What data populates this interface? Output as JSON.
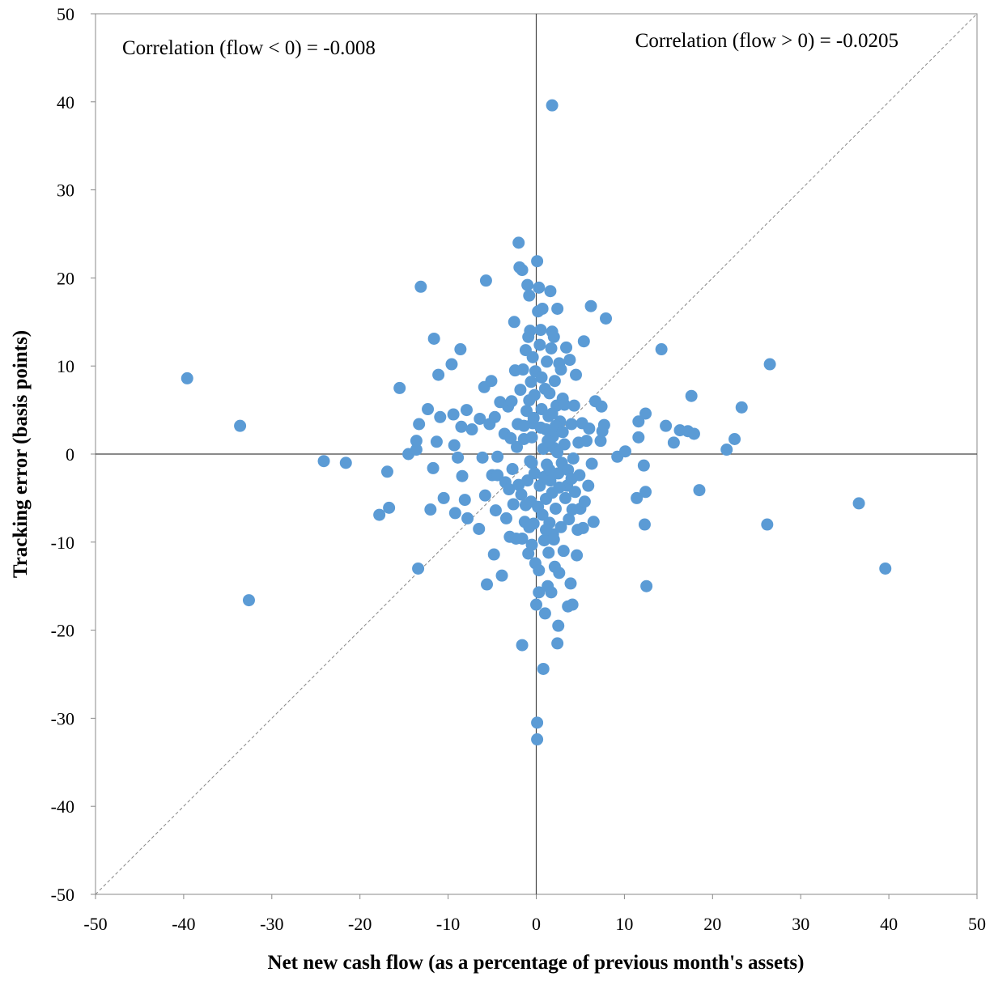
{
  "chart_data": {
    "type": "scatter",
    "xlabel": "Net new cash flow (as a percentage of previous month's assets)",
    "ylabel": "Tracking error (basis points)",
    "xlim": [
      -50,
      50
    ],
    "ylim": [
      -50,
      50
    ],
    "xticks": [
      "-50",
      "-40",
      "-30",
      "-20",
      "-10",
      "0",
      "10",
      "20",
      "30",
      "40",
      "50"
    ],
    "yticks": [
      "50",
      "40",
      "30",
      "20",
      "10",
      "0",
      "-10",
      "-20",
      "-30",
      "-40",
      "-50"
    ],
    "grid": false,
    "reference_line": "y = x (dashed)",
    "annotations": [
      {
        "id": "neg",
        "text": "Correlation (flow < 0) = -0.008",
        "position": "top-left"
      },
      {
        "id": "pos",
        "text": "Correlation (flow > 0) = -0.0205",
        "position": "top-right"
      }
    ],
    "series_color": "#5b9bd5",
    "points": [
      [
        1.8,
        39.6
      ],
      [
        -39.6,
        8.6
      ],
      [
        -33.6,
        3.2
      ],
      [
        -32.6,
        -16.6
      ],
      [
        -24.1,
        -0.8
      ],
      [
        -21.6,
        -1.0
      ],
      [
        -17.8,
        -6.9
      ],
      [
        -16.9,
        -2.0
      ],
      [
        -16.7,
        -6.1
      ],
      [
        -15.5,
        7.5
      ],
      [
        -14.5,
        0.0
      ],
      [
        -13.6,
        0.5
      ],
      [
        -13.6,
        1.5
      ],
      [
        -13.3,
        3.4
      ],
      [
        -13.4,
        -13.0
      ],
      [
        -13.1,
        19.0
      ],
      [
        -12.3,
        5.1
      ],
      [
        -12.0,
        -6.3
      ],
      [
        -11.7,
        -1.6
      ],
      [
        -11.6,
        13.1
      ],
      [
        -11.3,
        1.4
      ],
      [
        -11.1,
        9.0
      ],
      [
        -10.9,
        4.2
      ],
      [
        -10.5,
        -5.0
      ],
      [
        -9.6,
        10.2
      ],
      [
        -9.4,
        4.5
      ],
      [
        -9.3,
        1.0
      ],
      [
        -9.2,
        -6.7
      ],
      [
        -8.9,
        -0.4
      ],
      [
        -8.6,
        11.9
      ],
      [
        -8.5,
        3.1
      ],
      [
        -8.4,
        -2.5
      ],
      [
        -8.1,
        -5.2
      ],
      [
        -7.9,
        5.0
      ],
      [
        -7.8,
        -7.3
      ],
      [
        -7.3,
        2.8
      ],
      [
        -6.5,
        -8.5
      ],
      [
        -6.4,
        4.0
      ],
      [
        -6.1,
        -0.4
      ],
      [
        -5.9,
        7.6
      ],
      [
        -5.7,
        19.7
      ],
      [
        -5.8,
        -4.7
      ],
      [
        -5.6,
        -14.8
      ],
      [
        -5.3,
        3.4
      ],
      [
        -5.1,
        8.3
      ],
      [
        -5.0,
        -2.4
      ],
      [
        -4.8,
        -11.4
      ],
      [
        -4.7,
        4.2
      ],
      [
        -4.6,
        -6.4
      ],
      [
        -4.4,
        -2.4
      ],
      [
        -4.4,
        -0.3
      ],
      [
        -4.1,
        5.9
      ],
      [
        -3.9,
        -13.8
      ],
      [
        -3.6,
        2.3
      ],
      [
        -3.5,
        -3.2
      ],
      [
        -3.4,
        -7.3
      ],
      [
        -3.2,
        5.4
      ],
      [
        -3.1,
        -4.0
      ],
      [
        -3.0,
        -9.4
      ],
      [
        -2.9,
        1.8
      ],
      [
        -2.8,
        6.0
      ],
      [
        -2.7,
        -1.7
      ],
      [
        -2.6,
        -5.7
      ],
      [
        -2.5,
        15.0
      ],
      [
        -2.4,
        9.5
      ],
      [
        -2.3,
        -9.6
      ],
      [
        -2.2,
        0.8
      ],
      [
        -2.1,
        3.4
      ],
      [
        -2.0,
        -3.5
      ],
      [
        -1.9,
        21.2
      ],
      [
        -2.0,
        24.0
      ],
      [
        -1.8,
        7.3
      ],
      [
        -1.7,
        -4.6
      ],
      [
        -1.6,
        20.9
      ],
      [
        -1.6,
        -9.6
      ],
      [
        -1.6,
        -21.7
      ],
      [
        -1.5,
        9.6
      ],
      [
        -1.4,
        1.7
      ],
      [
        -1.3,
        -7.7
      ],
      [
        -1.2,
        11.8
      ],
      [
        -1.1,
        4.9
      ],
      [
        -1.0,
        19.2
      ],
      [
        -1.0,
        -3.0
      ],
      [
        -0.9,
        13.3
      ],
      [
        -0.9,
        -11.3
      ],
      [
        -0.8,
        6.1
      ],
      [
        -0.8,
        18.0
      ],
      [
        -0.7,
        -0.8
      ],
      [
        -0.7,
        14.0
      ],
      [
        -0.6,
        8.2
      ],
      [
        -0.6,
        -5.4
      ],
      [
        -0.5,
        1.9
      ],
      [
        -0.5,
        -10.3
      ],
      [
        -0.4,
        11.0
      ],
      [
        -0.4,
        3.5
      ],
      [
        -0.3,
        -7.9
      ],
      [
        -0.3,
        4.1
      ],
      [
        -0.2,
        -2.2
      ],
      [
        -0.2,
        6.7
      ],
      [
        -0.1,
        -12.4
      ],
      [
        -0.1,
        9.4
      ],
      [
        0.0,
        -17.1
      ],
      [
        0.1,
        21.9
      ],
      [
        0.1,
        -30.5
      ],
      [
        0.1,
        -32.4
      ],
      [
        0.2,
        16.2
      ],
      [
        0.3,
        18.9
      ],
      [
        0.3,
        -15.7
      ],
      [
        0.3,
        -13.2
      ],
      [
        0.4,
        12.4
      ],
      [
        0.4,
        -3.6
      ],
      [
        0.5,
        14.1
      ],
      [
        0.6,
        5.1
      ],
      [
        0.7,
        16.5
      ],
      [
        0.7,
        -6.9
      ],
      [
        0.8,
        0.6
      ],
      [
        0.8,
        -24.4
      ],
      [
        0.9,
        -9.8
      ],
      [
        1.0,
        -18.1
      ],
      [
        1.0,
        7.4
      ],
      [
        1.1,
        2.8
      ],
      [
        1.1,
        -5.1
      ],
      [
        1.2,
        10.5
      ],
      [
        1.2,
        -1.2
      ],
      [
        1.3,
        -15.0
      ],
      [
        1.4,
        4.3
      ],
      [
        1.4,
        -11.2
      ],
      [
        1.5,
        6.9
      ],
      [
        1.5,
        -7.8
      ],
      [
        1.6,
        18.5
      ],
      [
        1.6,
        -3.0
      ],
      [
        1.7,
        12.0
      ],
      [
        1.7,
        -15.7
      ],
      [
        1.8,
        13.9
      ],
      [
        1.8,
        -4.4
      ],
      [
        1.9,
        2.0
      ],
      [
        1.9,
        -9.1
      ],
      [
        2.0,
        13.3
      ],
      [
        2.0,
        0.7
      ],
      [
        2.1,
        -12.8
      ],
      [
        2.1,
        8.3
      ],
      [
        2.2,
        -6.2
      ],
      [
        2.3,
        5.5
      ],
      [
        2.4,
        16.5
      ],
      [
        2.4,
        -21.5
      ],
      [
        2.5,
        -19.5
      ],
      [
        2.5,
        -2.2
      ],
      [
        2.6,
        10.3
      ],
      [
        2.6,
        -13.5
      ],
      [
        2.7,
        3.7
      ],
      [
        2.8,
        -8.3
      ],
      [
        2.8,
        9.6
      ],
      [
        2.9,
        -1.0
      ],
      [
        3.0,
        6.3
      ],
      [
        3.1,
        -11.0
      ],
      [
        3.2,
        1.1
      ],
      [
        3.3,
        -5.0
      ],
      [
        3.4,
        12.1
      ],
      [
        3.5,
        -3.6
      ],
      [
        3.6,
        -17.3
      ],
      [
        3.7,
        -7.4
      ],
      [
        3.8,
        10.7
      ],
      [
        3.9,
        -14.7
      ],
      [
        4.0,
        3.4
      ],
      [
        4.1,
        -17.1
      ],
      [
        4.1,
        -6.3
      ],
      [
        4.2,
        -0.5
      ],
      [
        4.3,
        5.5
      ],
      [
        4.4,
        -4.3
      ],
      [
        4.5,
        9.0
      ],
      [
        4.6,
        -11.5
      ],
      [
        4.7,
        -8.6
      ],
      [
        4.8,
        1.3
      ],
      [
        4.9,
        -2.4
      ],
      [
        5.0,
        -6.2
      ],
      [
        5.2,
        3.5
      ],
      [
        5.3,
        -8.4
      ],
      [
        5.4,
        12.8
      ],
      [
        5.5,
        -5.4
      ],
      [
        5.7,
        1.5
      ],
      [
        5.9,
        -3.6
      ],
      [
        6.0,
        2.9
      ],
      [
        6.2,
        16.8
      ],
      [
        6.3,
        -1.1
      ],
      [
        6.5,
        -7.7
      ],
      [
        6.7,
        6.0
      ],
      [
        7.3,
        1.5
      ],
      [
        7.4,
        5.4
      ],
      [
        7.5,
        2.6
      ],
      [
        7.7,
        3.3
      ],
      [
        7.9,
        15.4
      ],
      [
        9.2,
        -0.3
      ],
      [
        10.1,
        0.3
      ],
      [
        11.4,
        -5.0
      ],
      [
        11.6,
        1.9
      ],
      [
        11.6,
        3.7
      ],
      [
        12.2,
        -1.3
      ],
      [
        12.3,
        -8.0
      ],
      [
        12.4,
        4.6
      ],
      [
        12.4,
        -4.3
      ],
      [
        12.5,
        -15.0
      ],
      [
        14.2,
        11.9
      ],
      [
        14.7,
        3.2
      ],
      [
        15.6,
        1.3
      ],
      [
        16.3,
        2.7
      ],
      [
        17.2,
        2.6
      ],
      [
        17.6,
        6.6
      ],
      [
        17.9,
        2.3
      ],
      [
        18.5,
        -4.1
      ],
      [
        21.6,
        0.5
      ],
      [
        22.5,
        1.7
      ],
      [
        23.3,
        5.3
      ],
      [
        26.2,
        -8.0
      ],
      [
        26.5,
        10.2
      ],
      [
        36.6,
        -5.6
      ],
      [
        39.6,
        -13.0
      ],
      [
        0.5,
        3.0
      ],
      [
        1.3,
        1.5
      ],
      [
        2.2,
        3.2
      ],
      [
        0.9,
        -2.6
      ],
      [
        -0.5,
        -1.0
      ],
      [
        1.5,
        -1.8
      ],
      [
        3.0,
        2.5
      ],
      [
        0.2,
        -6.0
      ],
      [
        2.6,
        -3.8
      ],
      [
        -1.2,
        -5.8
      ],
      [
        1.8,
        4.6
      ],
      [
        3.6,
        -1.8
      ],
      [
        0.6,
        8.7
      ],
      [
        2.0,
        -9.7
      ],
      [
        -1.4,
        3.2
      ],
      [
        4.0,
        -2.8
      ],
      [
        1.1,
        -8.6
      ],
      [
        3.2,
        5.6
      ],
      [
        -0.8,
        -8.3
      ],
      [
        2.4,
        0.2
      ]
    ]
  }
}
